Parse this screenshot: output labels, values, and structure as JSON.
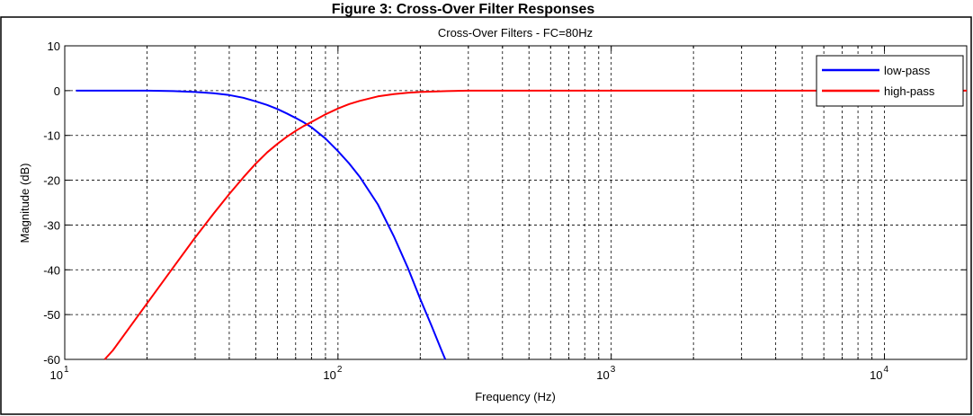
{
  "header_text": "Figure 3: Cross-Over Filter Responses",
  "chart_data": {
    "type": "line",
    "title": "Cross-Over Filters - FC=80Hz",
    "xlabel": "Frequency (Hz)",
    "ylabel": "Magnitude (dB)",
    "xscale": "log",
    "xlim": [
      10,
      20000
    ],
    "ylim": [
      -60,
      10
    ],
    "xticks": [
      10,
      100,
      1000,
      10000
    ],
    "xtick_labels": [
      {
        "base": "10",
        "exp": "1"
      },
      {
        "base": "10",
        "exp": "2"
      },
      {
        "base": "10",
        "exp": "3"
      },
      {
        "base": "10",
        "exp": "4"
      }
    ],
    "yticks": [
      10,
      0,
      -10,
      -20,
      -30,
      -40,
      -50,
      -60
    ],
    "ytick_labels": [
      "10",
      "0",
      "-10",
      "-20",
      "-30",
      "-40",
      "-50",
      "-60"
    ],
    "grid": true,
    "legend_position": "top-right",
    "series": [
      {
        "name": "low-pass",
        "color": "#0000ff",
        "x": [
          11,
          15,
          20,
          25,
          30,
          35,
          40,
          45,
          50,
          55,
          60,
          65,
          70,
          75,
          80,
          90,
          100,
          110,
          120,
          140,
          160,
          180,
          200,
          220,
          240,
          247
        ],
        "y": [
          0,
          0,
          0,
          -0.1,
          -0.3,
          -0.6,
          -1.0,
          -1.6,
          -2.4,
          -3.2,
          -4.1,
          -5.1,
          -6.1,
          -7.1,
          -8.2,
          -10.7,
          -13.5,
          -16.3,
          -19.2,
          -25.4,
          -32.5,
          -39.5,
          -46.5,
          -52.5,
          -58.2,
          -60
        ]
      },
      {
        "name": "high-pass",
        "color": "#ff0000",
        "x": [
          14,
          15,
          20,
          25,
          30,
          35,
          40,
          45,
          50,
          55,
          60,
          65,
          70,
          75,
          80,
          90,
          100,
          110,
          120,
          140,
          160,
          180,
          200,
          250,
          300,
          500,
          1000,
          5000,
          10000,
          20000
        ],
        "y": [
          -60,
          -58,
          -47.5,
          -39.4,
          -32.8,
          -27.5,
          -23.1,
          -19.4,
          -16.3,
          -13.8,
          -11.9,
          -10.3,
          -9.0,
          -7.9,
          -7.0,
          -5.3,
          -4.0,
          -3.0,
          -2.3,
          -1.3,
          -0.8,
          -0.5,
          -0.3,
          -0.1,
          0,
          0,
          0,
          0,
          0,
          0
        ]
      }
    ]
  }
}
